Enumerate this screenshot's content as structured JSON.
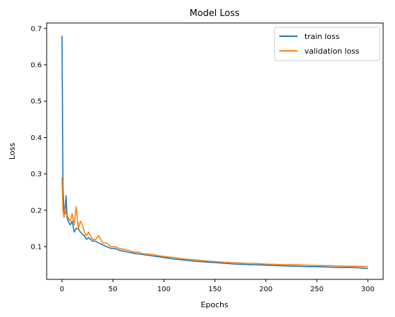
{
  "chart_data": {
    "type": "line",
    "title": "Model Loss",
    "xlabel": "Epochs",
    "ylabel": "Loss",
    "xlim": [
      -15,
      315
    ],
    "ylim": [
      0.01,
      0.715
    ],
    "xticks": [
      0,
      50,
      100,
      150,
      200,
      250,
      300
    ],
    "yticks": [
      0.1,
      0.2,
      0.3,
      0.4,
      0.5,
      0.6,
      0.7
    ],
    "grid": false,
    "legend": "top-right",
    "series": [
      {
        "name": "train loss",
        "color": "#1f77b4",
        "x": [
          0,
          1,
          2,
          3,
          4,
          5,
          6,
          8,
          10,
          12,
          14,
          16,
          18,
          20,
          22,
          24,
          26,
          28,
          30,
          33,
          36,
          40,
          44,
          48,
          52,
          56,
          60,
          65,
          70,
          75,
          80,
          85,
          90,
          95,
          100,
          110,
          120,
          130,
          140,
          150,
          160,
          170,
          180,
          190,
          200,
          210,
          220,
          230,
          240,
          250,
          260,
          270,
          280,
          290,
          300
        ],
        "y": [
          0.68,
          0.26,
          0.2,
          0.19,
          0.24,
          0.18,
          0.17,
          0.16,
          0.17,
          0.14,
          0.15,
          0.15,
          0.14,
          0.135,
          0.13,
          0.12,
          0.125,
          0.12,
          0.115,
          0.115,
          0.11,
          0.105,
          0.1,
          0.095,
          0.095,
          0.09,
          0.088,
          0.085,
          0.082,
          0.08,
          0.078,
          0.076,
          0.074,
          0.072,
          0.07,
          0.066,
          0.063,
          0.06,
          0.058,
          0.056,
          0.054,
          0.052,
          0.051,
          0.05,
          0.049,
          0.048,
          0.047,
          0.046,
          0.045,
          0.045,
          0.044,
          0.043,
          0.043,
          0.042,
          0.04
        ]
      },
      {
        "name": "validation loss",
        "color": "#ff7f0e",
        "x": [
          0,
          1,
          2,
          3,
          4,
          5,
          6,
          8,
          10,
          12,
          14,
          16,
          18,
          20,
          22,
          24,
          26,
          28,
          30,
          33,
          36,
          40,
          44,
          48,
          52,
          56,
          60,
          65,
          70,
          75,
          80,
          85,
          90,
          95,
          100,
          110,
          120,
          130,
          140,
          150,
          160,
          170,
          180,
          190,
          200,
          210,
          220,
          230,
          240,
          250,
          260,
          270,
          280,
          290,
          300
        ],
        "y": [
          0.29,
          0.2,
          0.18,
          0.21,
          0.19,
          0.19,
          0.18,
          0.17,
          0.19,
          0.16,
          0.21,
          0.15,
          0.17,
          0.16,
          0.14,
          0.13,
          0.14,
          0.13,
          0.12,
          0.12,
          0.13,
          0.11,
          0.11,
          0.1,
          0.1,
          0.095,
          0.093,
          0.09,
          0.085,
          0.085,
          0.08,
          0.08,
          0.078,
          0.075,
          0.073,
          0.07,
          0.066,
          0.064,
          0.061,
          0.059,
          0.057,
          0.056,
          0.054,
          0.054,
          0.052,
          0.051,
          0.05,
          0.05,
          0.049,
          0.048,
          0.048,
          0.047,
          0.046,
          0.046,
          0.045
        ]
      }
    ]
  }
}
